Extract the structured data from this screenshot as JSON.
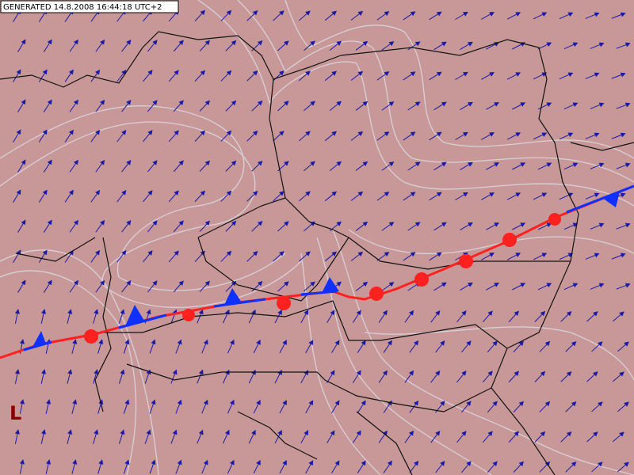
{
  "header": {
    "timestamp": "GENERATED 14.8.2008 16:44:18 UTC+2"
  },
  "labels": [
    {
      "text": "L"
    }
  ]
}
